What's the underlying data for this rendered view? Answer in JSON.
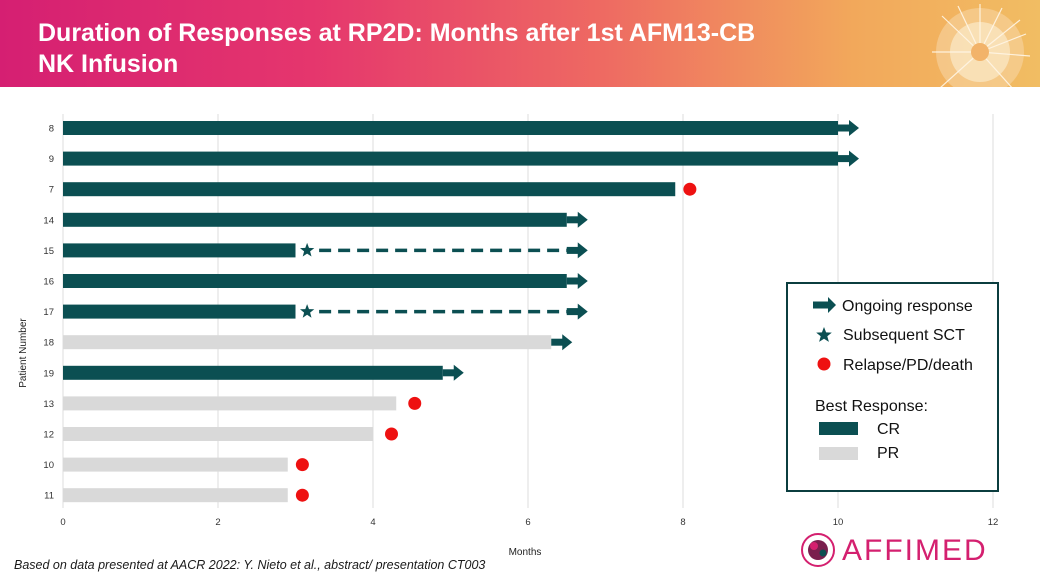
{
  "header": {
    "title": "Duration of Responses at RP2D: Months after 1st AFM13-CB NK Infusion"
  },
  "colors": {
    "cr": "#0b4f52",
    "pr": "#d9d9d9",
    "relapse": "#ee1111",
    "grid": "#dcdcdc",
    "brand": "#d4206f"
  },
  "chart_data": {
    "type": "bar",
    "orientation": "horizontal",
    "title": "Duration of Responses at RP2D: Months after 1st AFM13-CB NK Infusion",
    "xlabel": "Months",
    "ylabel": "Patient Number",
    "xlim": [
      0,
      12
    ],
    "xticks": [
      0,
      2,
      4,
      6,
      8,
      10,
      12
    ],
    "grid": true,
    "categories": [
      "8",
      "9",
      "7",
      "14",
      "15",
      "16",
      "17",
      "18",
      "19",
      "13",
      "12",
      "10",
      "11"
    ],
    "bars": [
      {
        "patient": "8",
        "months": 10.0,
        "best_response": "CR",
        "ongoing": true,
        "sct": null,
        "relapse": null
      },
      {
        "patient": "9",
        "months": 10.0,
        "best_response": "CR",
        "ongoing": true,
        "sct": null,
        "relapse": null
      },
      {
        "patient": "7",
        "months": 7.9,
        "best_response": "CR",
        "ongoing": false,
        "sct": null,
        "relapse": 8.05
      },
      {
        "patient": "14",
        "months": 6.5,
        "best_response": "CR",
        "ongoing": true,
        "sct": null,
        "relapse": null
      },
      {
        "patient": "15",
        "months": 3.0,
        "best_response": "CR",
        "ongoing": true,
        "sct": 3.15,
        "dashed_to": 6.5,
        "relapse": null
      },
      {
        "patient": "16",
        "months": 6.5,
        "best_response": "CR",
        "ongoing": true,
        "sct": null,
        "relapse": null
      },
      {
        "patient": "17",
        "months": 3.0,
        "best_response": "CR",
        "ongoing": true,
        "sct": 3.15,
        "dashed_to": 6.5,
        "relapse": null
      },
      {
        "patient": "18",
        "months": 6.3,
        "best_response": "PR",
        "ongoing": true,
        "sct": null,
        "relapse": null
      },
      {
        "patient": "19",
        "months": 4.9,
        "best_response": "CR",
        "ongoing": true,
        "sct": null,
        "relapse": null
      },
      {
        "patient": "13",
        "months": 4.3,
        "best_response": "PR",
        "ongoing": false,
        "sct": null,
        "relapse": 4.5
      },
      {
        "patient": "12",
        "months": 4.0,
        "best_response": "PR",
        "ongoing": false,
        "sct": null,
        "relapse": 4.2
      },
      {
        "patient": "10",
        "months": 2.9,
        "best_response": "PR",
        "ongoing": false,
        "sct": null,
        "relapse": 3.05
      },
      {
        "patient": "11",
        "months": 2.9,
        "best_response": "PR",
        "ongoing": false,
        "sct": null,
        "relapse": 3.05
      }
    ],
    "legend": {
      "placement": "right",
      "ongoing_label": "Ongoing response",
      "sct_label": "Subsequent SCT",
      "relapse_label": "Relapse/PD/death",
      "best_response_label": "Best Response:",
      "cr_label": "CR",
      "pr_label": "PR"
    }
  },
  "footnote": "Based on data presented at AACR 2022: Y. Nieto et al., abstract/ presentation CT003",
  "logo": {
    "text": "AFFIMED"
  }
}
